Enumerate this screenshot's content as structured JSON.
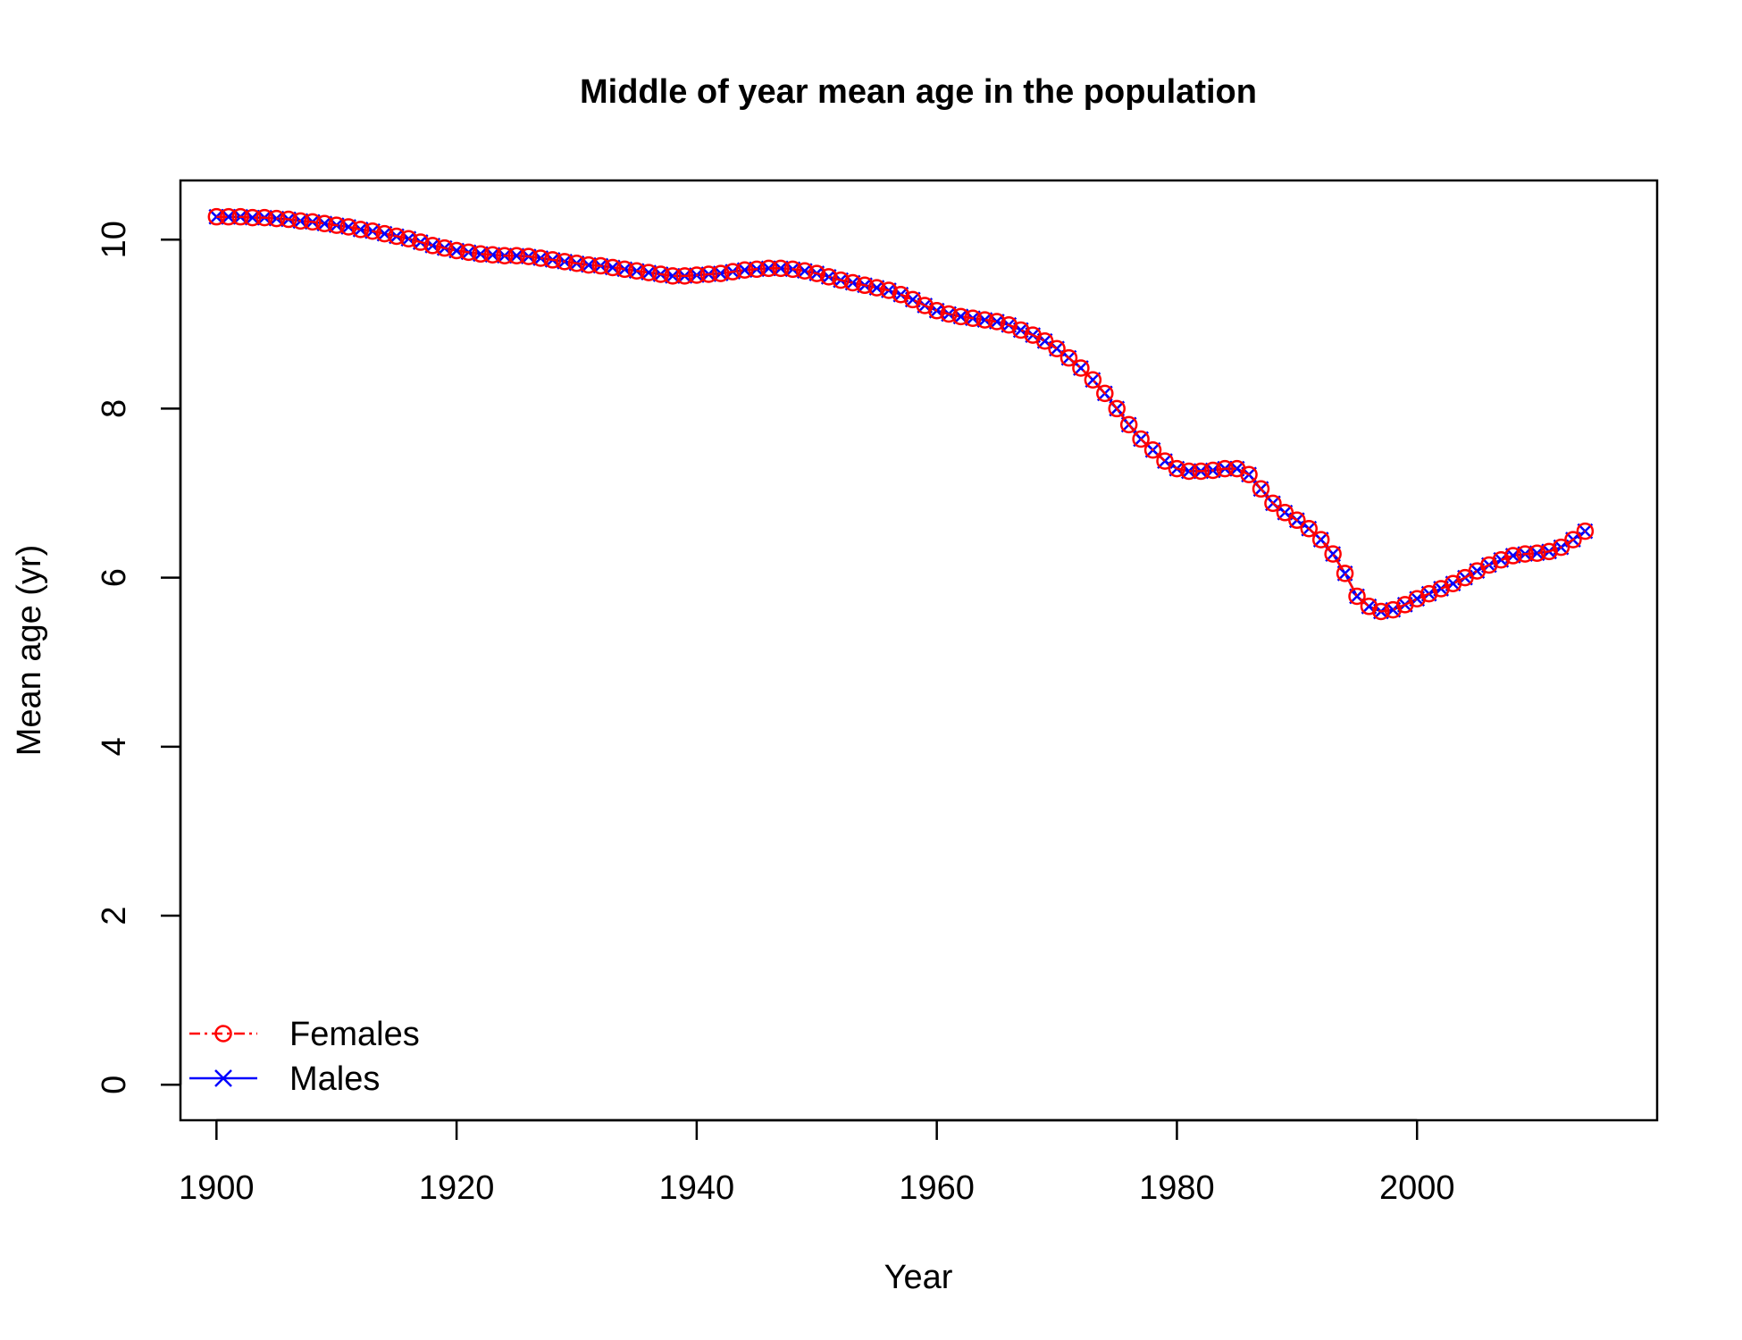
{
  "chart_data": {
    "type": "line",
    "title": "Middle of year mean age in the population",
    "xlabel": "Year",
    "ylabel": "Mean age (yr)",
    "xlim": [
      1897,
      2020
    ],
    "ylim": [
      -0.42,
      10.7
    ],
    "xticks": [
      1900,
      1920,
      1940,
      1960,
      1980,
      2000
    ],
    "yticks": [
      0,
      2,
      4,
      6,
      8,
      10
    ],
    "xtick_labels": [
      "1900",
      "1920",
      "1940",
      "1960",
      "1980",
      "2000"
    ],
    "ytick_labels": [
      "0",
      "2",
      "4",
      "6",
      "8",
      "10"
    ],
    "grid": false,
    "legend_position": "bottom-left",
    "colors": {
      "females": "#ff0000",
      "males": "#0000ff",
      "axis": "#000000"
    },
    "x": [
      1900,
      1901,
      1902,
      1903,
      1904,
      1905,
      1906,
      1907,
      1908,
      1909,
      1910,
      1911,
      1912,
      1913,
      1914,
      1915,
      1916,
      1917,
      1918,
      1919,
      1920,
      1921,
      1922,
      1923,
      1924,
      1925,
      1926,
      1927,
      1928,
      1929,
      1930,
      1931,
      1932,
      1933,
      1934,
      1935,
      1936,
      1937,
      1938,
      1939,
      1940,
      1941,
      1942,
      1943,
      1944,
      1945,
      1946,
      1947,
      1948,
      1949,
      1950,
      1951,
      1952,
      1953,
      1954,
      1955,
      1956,
      1957,
      1958,
      1959,
      1960,
      1961,
      1962,
      1963,
      1964,
      1965,
      1966,
      1967,
      1968,
      1969,
      1970,
      1971,
      1972,
      1973,
      1974,
      1975,
      1976,
      1977,
      1978,
      1979,
      1980,
      1981,
      1982,
      1983,
      1984,
      1985,
      1986,
      1987,
      1988,
      1989,
      1990,
      1991,
      1992,
      1993,
      1994,
      1995,
      1996,
      1997,
      1998,
      1999,
      2000,
      2001,
      2002,
      2003,
      2004,
      2005,
      2006,
      2007,
      2008,
      2009,
      2010,
      2011,
      2012,
      2013,
      2014
    ],
    "series": [
      {
        "name": "Females",
        "values": [
          10.27,
          10.27,
          10.27,
          10.26,
          10.26,
          10.25,
          10.24,
          10.22,
          10.21,
          10.19,
          10.17,
          10.15,
          10.12,
          10.1,
          10.07,
          10.04,
          10.01,
          9.97,
          9.93,
          9.9,
          9.87,
          9.85,
          9.83,
          9.82,
          9.81,
          9.81,
          9.8,
          9.78,
          9.76,
          9.74,
          9.72,
          9.7,
          9.69,
          9.67,
          9.65,
          9.63,
          9.61,
          9.59,
          9.57,
          9.57,
          9.58,
          9.59,
          9.6,
          9.62,
          9.64,
          9.65,
          9.66,
          9.66,
          9.65,
          9.63,
          9.6,
          9.56,
          9.52,
          9.49,
          9.46,
          9.43,
          9.4,
          9.35,
          9.29,
          9.22,
          9.16,
          9.12,
          9.09,
          9.07,
          9.05,
          9.03,
          8.99,
          8.93,
          8.87,
          8.8,
          8.71,
          8.6,
          8.48,
          8.34,
          8.18,
          8.0,
          7.81,
          7.64,
          7.51,
          7.38,
          7.29,
          7.26,
          7.26,
          7.27,
          7.29,
          7.29,
          7.22,
          7.05,
          6.88,
          6.77,
          6.68,
          6.58,
          6.45,
          6.28,
          6.05,
          5.78,
          5.66,
          5.6,
          5.62,
          5.68,
          5.75,
          5.81,
          5.87,
          5.93,
          6.0,
          6.08,
          6.15,
          6.21,
          6.26,
          6.28,
          6.29,
          6.31,
          6.36,
          6.45,
          6.55
        ]
      },
      {
        "name": "Males",
        "values": [
          10.27,
          10.27,
          10.27,
          10.26,
          10.26,
          10.25,
          10.24,
          10.22,
          10.21,
          10.19,
          10.17,
          10.15,
          10.12,
          10.1,
          10.07,
          10.04,
          10.01,
          9.97,
          9.93,
          9.9,
          9.87,
          9.85,
          9.83,
          9.82,
          9.81,
          9.81,
          9.8,
          9.78,
          9.76,
          9.74,
          9.72,
          9.7,
          9.69,
          9.67,
          9.65,
          9.63,
          9.61,
          9.59,
          9.57,
          9.57,
          9.58,
          9.59,
          9.6,
          9.62,
          9.64,
          9.65,
          9.66,
          9.66,
          9.65,
          9.63,
          9.6,
          9.56,
          9.52,
          9.49,
          9.46,
          9.43,
          9.4,
          9.35,
          9.29,
          9.22,
          9.16,
          9.12,
          9.09,
          9.07,
          9.05,
          9.03,
          8.99,
          8.93,
          8.87,
          8.8,
          8.71,
          8.6,
          8.48,
          8.34,
          8.18,
          8.0,
          7.81,
          7.64,
          7.51,
          7.38,
          7.29,
          7.26,
          7.26,
          7.27,
          7.29,
          7.29,
          7.22,
          7.05,
          6.88,
          6.77,
          6.68,
          6.58,
          6.45,
          6.28,
          6.05,
          5.78,
          5.66,
          5.6,
          5.62,
          5.68,
          5.75,
          5.81,
          5.87,
          5.93,
          6.0,
          6.08,
          6.15,
          6.21,
          6.26,
          6.28,
          6.29,
          6.31,
          6.36,
          6.45,
          6.55
        ]
      }
    ]
  }
}
